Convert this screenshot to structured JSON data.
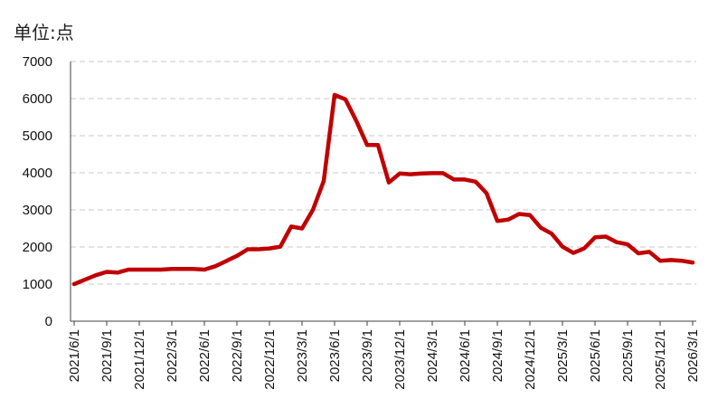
{
  "unit_label": "单位:点",
  "chart_data": {
    "type": "line",
    "title": "",
    "xlabel": "",
    "ylabel": "单位:点",
    "ylim": [
      0,
      7000
    ],
    "yticks": [
      0,
      1000,
      2000,
      3000,
      4000,
      5000,
      6000,
      7000
    ],
    "grid": true,
    "x_tick_labels": [
      "2021/6/1",
      "2021/9/1",
      "2021/12/1",
      "2022/3/1",
      "2022/6/1",
      "2022/9/1",
      "2022/12/1",
      "2023/3/1",
      "2023/6/1",
      "2023/9/1",
      "2023/12/1",
      "2024/3/1",
      "2024/6/1",
      "2024/9/1",
      "2024/12/1",
      "2025/3/1",
      "2025/6/1",
      "2025/9/1",
      "2025/12/1",
      "2026/3/1"
    ],
    "line_color": "#c00000",
    "series": [
      {
        "x": [
          "2021/6/1",
          "2021/7/1",
          "2021/8/1",
          "2021/9/1",
          "2021/10/1",
          "2021/11/1",
          "2021/12/1",
          "2022/1/1",
          "2022/2/1",
          "2022/3/1",
          "2022/4/1",
          "2022/5/1",
          "2022/6/1",
          "2022/7/1",
          "2022/8/1",
          "2022/9/1",
          "2022/10/1",
          "2022/11/1",
          "2022/12/1",
          "2023/1/1",
          "2023/2/1",
          "2023/3/1",
          "2023/4/1",
          "2023/5/1",
          "2023/6/1",
          "2023/7/1",
          "2023/8/1",
          "2023/9/1",
          "2023/10/1",
          "2023/11/1",
          "2023/12/1",
          "2024/1/1",
          "2024/2/1",
          "2024/3/1",
          "2024/4/1",
          "2024/5/1",
          "2024/6/1",
          "2024/7/1",
          "2024/8/1",
          "2024/9/1",
          "2024/10/1",
          "2024/11/1",
          "2024/12/1",
          "2025/1/1",
          "2025/2/1",
          "2025/3/1",
          "2025/4/1",
          "2025/5/1",
          "2025/6/1",
          "2025/7/1",
          "2025/8/1",
          "2025/9/1",
          "2025/10/1",
          "2025/11/1",
          "2025/12/1",
          "2026/1/1",
          "2026/2/1",
          "2026/3/1"
        ],
        "values": [
          1000,
          1120,
          1240,
          1330,
          1310,
          1390,
          1390,
          1390,
          1390,
          1410,
          1410,
          1410,
          1390,
          1480,
          1620,
          1760,
          1940,
          1940,
          1960,
          2010,
          2550,
          2500,
          3000,
          3780,
          6100,
          5980,
          5400,
          4750,
          4750,
          3740,
          3980,
          3960,
          3980,
          3990,
          3990,
          3820,
          3820,
          3760,
          3450,
          2700,
          2740,
          2890,
          2860,
          2520,
          2360,
          2010,
          1840,
          1960,
          2260,
          2280,
          2130,
          2070,
          1830,
          1870,
          1630,
          1650,
          1630,
          1580
        ]
      }
    ]
  }
}
